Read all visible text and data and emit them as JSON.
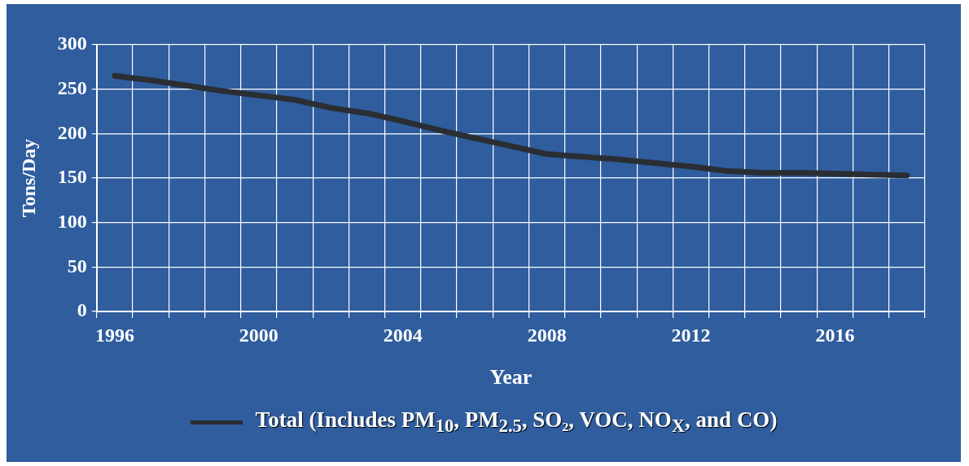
{
  "chart_data": {
    "type": "line",
    "xlabel": "Year",
    "ylabel": "Tons/Day",
    "categories": [
      "1996",
      null,
      null,
      null,
      "2000",
      null,
      null,
      null,
      "2004",
      null,
      null,
      null,
      "2008",
      null,
      null,
      null,
      "2012",
      null,
      null,
      null,
      "2016",
      null,
      null
    ],
    "series": [
      {
        "name": "Total (Includes PM$_{10}$, PM$_{2.5}$, SO₂, VOC, NO$_{X}$, and CO)",
        "color": "#2a2e33",
        "values": [
          265,
          260,
          254,
          248,
          243,
          238,
          229,
          223,
          214,
          204,
          195,
          186,
          177,
          174,
          171,
          167,
          163,
          158,
          156,
          156,
          155,
          154,
          153
        ]
      }
    ],
    "ylim": [
      0,
      300
    ],
    "yticks": [
      0,
      50,
      100,
      150,
      200,
      250,
      300
    ],
    "grid": true,
    "legend": "bottom",
    "marker": "none",
    "line_style": "solid"
  }
}
